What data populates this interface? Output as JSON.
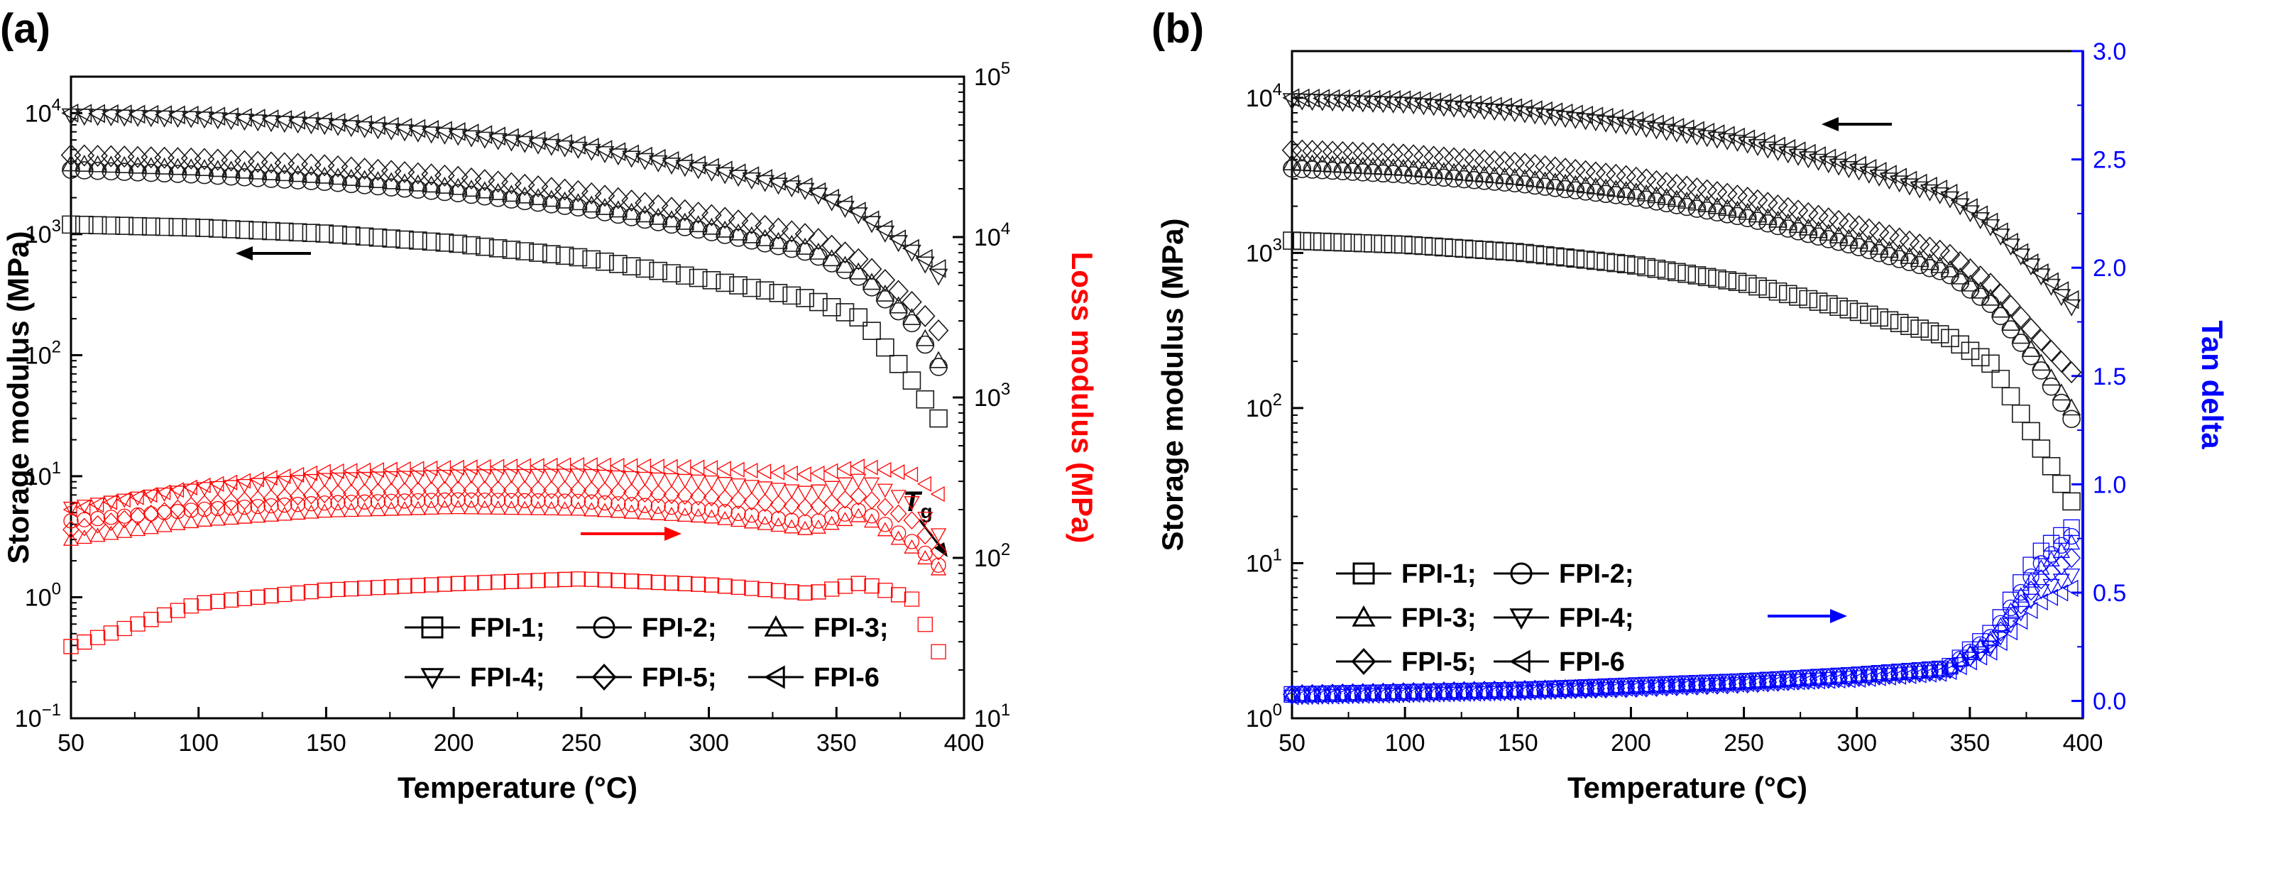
{
  "figure": {
    "panel_a_label": "(a)",
    "panel_b_label": "(b)",
    "legend_labels": [
      "FPI-1;",
      "FPI-2;",
      "FPI-3;",
      "FPI-4;",
      "FPI-5;",
      "FPI-6"
    ],
    "tg_label_main": "T",
    "tg_label_sub": "g",
    "colors": {
      "storage": "#1a1a1a",
      "loss": "#ff0000",
      "tan": "#0000ff"
    }
  },
  "chart_data": [
    {
      "type": "scatter",
      "panel": "(a)",
      "xlabel": "Temperature (°C)",
      "ylabel": "Storage modulus (MPa)",
      "y2label": "Loss modulus (MPa)",
      "xlim": [
        50,
        400
      ],
      "xticks": [
        50,
        100,
        150,
        200,
        250,
        300,
        350,
        400
      ],
      "ylim": [
        0.1,
        20000
      ],
      "yscale": "log",
      "yticks": [
        "10^-1",
        "10^0",
        "10^1",
        "10^2",
        "10^3",
        "10^4"
      ],
      "y2lim": [
        10,
        100000
      ],
      "y2scale": "log",
      "y2ticks": [
        "10^1",
        "10^2",
        "10^3",
        "10^4",
        "10^5"
      ],
      "legend_position": "lower-right",
      "annotations": [
        "Tg"
      ],
      "x": [
        50,
        100,
        150,
        200,
        250,
        300,
        340,
        360,
        380,
        390
      ],
      "series": [
        {
          "name": "FPI-1",
          "axis": "left",
          "values": [
            1200,
            1130,
            1010,
            840,
            640,
            420,
            290,
            200,
            60,
            30
          ]
        },
        {
          "name": "FPI-2",
          "axis": "left",
          "values": [
            3400,
            3100,
            2700,
            2200,
            1650,
            1050,
            700,
            430,
            180,
            80
          ]
        },
        {
          "name": "FPI-3",
          "axis": "left",
          "values": [
            3800,
            3500,
            3000,
            2450,
            1800,
            1150,
            760,
            470,
            200,
            90
          ]
        },
        {
          "name": "FPI-4",
          "axis": "left",
          "values": [
            9500,
            9000,
            7900,
            6500,
            5000,
            3300,
            2250,
            1400,
            700,
            450
          ]
        },
        {
          "name": "FPI-5",
          "axis": "left",
          "values": [
            4500,
            4200,
            3700,
            3000,
            2250,
            1450,
            980,
            600,
            270,
            160
          ]
        },
        {
          "name": "FPI-6",
          "axis": "left",
          "values": [
            10000,
            9600,
            8500,
            7100,
            5400,
            3600,
            2400,
            1500,
            750,
            520
          ]
        },
        {
          "name": "FPI-1",
          "axis": "right",
          "values": [
            28,
            52,
            63,
            69,
            74,
            68,
            60,
            70,
            55,
            26
          ]
        },
        {
          "name": "FPI-2",
          "axis": "right",
          "values": [
            170,
            200,
            220,
            230,
            225,
            200,
            165,
            200,
            125,
            90
          ]
        },
        {
          "name": "FPI-3",
          "axis": "right",
          "values": [
            130,
            170,
            195,
            205,
            200,
            180,
            150,
            185,
            115,
            85
          ]
        },
        {
          "name": "FPI-4",
          "axis": "right",
          "values": [
            205,
            270,
            310,
            325,
            330,
            300,
            255,
            310,
            220,
            140
          ]
        },
        {
          "name": "FPI-5",
          "axis": "right",
          "values": [
            150,
            215,
            250,
            265,
            265,
            240,
            205,
            245,
            170,
            110
          ]
        },
        {
          "name": "FPI-6",
          "axis": "right",
          "values": [
            200,
            280,
            345,
            365,
            380,
            365,
            330,
            375,
            330,
            250
          ]
        }
      ]
    },
    {
      "type": "scatter",
      "panel": "(b)",
      "xlabel": "Temperature (°C)",
      "ylabel": "Storage modulus (MPa)",
      "y2label": "Tan delta",
      "xlim": [
        50,
        400
      ],
      "xticks": [
        50,
        100,
        150,
        200,
        250,
        300,
        350,
        400
      ],
      "ylim": [
        1,
        20000
      ],
      "yscale": "log",
      "yticks": [
        "10^0",
        "10^1",
        "10^2",
        "10^3",
        "10^4"
      ],
      "y2lim": [
        -0.08,
        3.0
      ],
      "y2ticks": [
        0.0,
        0.5,
        1.0,
        1.5,
        2.0,
        2.5,
        3.0
      ],
      "legend_position": "lower-left",
      "x": [
        50,
        100,
        150,
        200,
        250,
        300,
        340,
        360,
        380,
        395
      ],
      "series": [
        {
          "name": "FPI-1",
          "axis": "left",
          "values": [
            1200,
            1130,
            1010,
            840,
            640,
            420,
            290,
            190,
            60,
            25
          ]
        },
        {
          "name": "FPI-2",
          "axis": "left",
          "values": [
            3500,
            3200,
            2800,
            2300,
            1700,
            1100,
            740,
            460,
            190,
            85
          ]
        },
        {
          "name": "FPI-3",
          "axis": "left",
          "values": [
            3800,
            3500,
            3050,
            2500,
            1850,
            1200,
            800,
            500,
            210,
            100
          ]
        },
        {
          "name": "FPI-4",
          "axis": "left",
          "values": [
            9600,
            9100,
            8000,
            6600,
            5100,
            3400,
            2300,
            1450,
            750,
            450
          ]
        },
        {
          "name": "FPI-5",
          "axis": "left",
          "values": [
            4600,
            4300,
            3800,
            3100,
            2300,
            1500,
            1000,
            620,
            290,
            170
          ]
        },
        {
          "name": "FPI-6",
          "axis": "left",
          "values": [
            10000,
            9700,
            8600,
            7200,
            5500,
            3700,
            2500,
            1550,
            780,
            500
          ]
        },
        {
          "name": "FPI-1",
          "axis": "right",
          "values": [
            0.03,
            0.04,
            0.05,
            0.07,
            0.09,
            0.12,
            0.15,
            0.32,
            0.68,
            0.8
          ]
        },
        {
          "name": "FPI-2",
          "axis": "right",
          "values": [
            0.03,
            0.04,
            0.05,
            0.07,
            0.09,
            0.12,
            0.15,
            0.3,
            0.62,
            0.76
          ]
        },
        {
          "name": "FPI-3",
          "axis": "right",
          "values": [
            0.03,
            0.04,
            0.05,
            0.07,
            0.09,
            0.12,
            0.15,
            0.29,
            0.6,
            0.73
          ]
        },
        {
          "name": "FPI-4",
          "axis": "right",
          "values": [
            0.02,
            0.03,
            0.04,
            0.06,
            0.08,
            0.11,
            0.14,
            0.25,
            0.5,
            0.58
          ]
        },
        {
          "name": "FPI-5",
          "axis": "right",
          "values": [
            0.03,
            0.04,
            0.05,
            0.06,
            0.08,
            0.11,
            0.14,
            0.27,
            0.55,
            0.66
          ]
        },
        {
          "name": "FPI-6",
          "axis": "right",
          "values": [
            0.02,
            0.03,
            0.04,
            0.06,
            0.08,
            0.1,
            0.13,
            0.23,
            0.45,
            0.52
          ]
        }
      ]
    }
  ]
}
